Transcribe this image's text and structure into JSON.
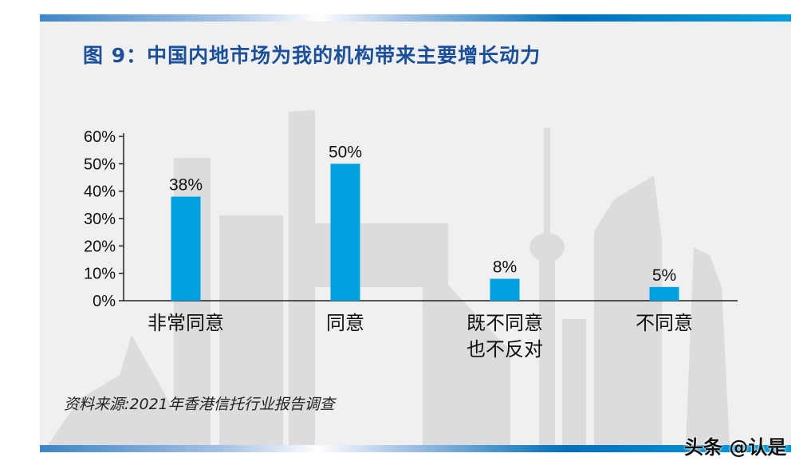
{
  "title": "图 9：中国内地市场为我的机构带来主要增长动力",
  "source": "资料来源:2021年香港信托行业报告调查",
  "watermark": "头条 @认是",
  "colors": {
    "bar": "#00a0e0",
    "title": "#1a4f9c",
    "skyline": "#dcdcde"
  },
  "chart_data": {
    "type": "bar",
    "title": "图 9：中国内地市场为我的机构带来主要增长动力",
    "categories": [
      "非常同意",
      "同意",
      "既不同意\n也不反对",
      "不同意"
    ],
    "values": [
      38,
      50,
      8,
      5
    ],
    "data_labels": [
      "38%",
      "50%",
      "8%",
      "5%"
    ],
    "yticks": [
      "0%",
      "10%",
      "20%",
      "30%",
      "40%",
      "50%",
      "60%"
    ],
    "ylim": [
      0,
      60
    ],
    "xlabel": "",
    "ylabel": "",
    "grid": false
  }
}
